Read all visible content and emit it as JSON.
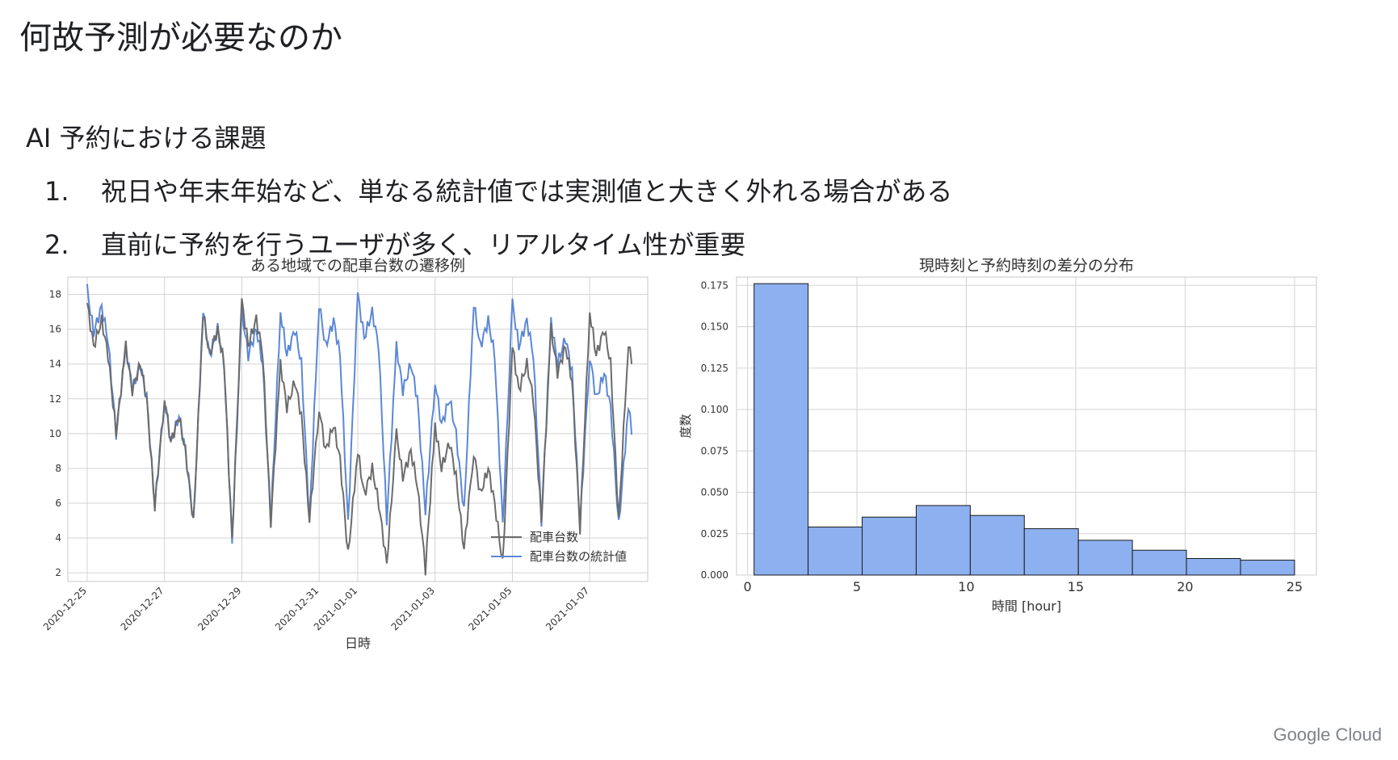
{
  "slide": {
    "title": "何故予測が必要なのか",
    "subtitle": "AI 予約における課題",
    "items": [
      {
        "num": "1.",
        "text": "祝日や年末年始など、単なる統計値では実測値と大きく外れる場合がある"
      },
      {
        "num": "2.",
        "text": "直前に予約を行うユーザが多く、リアルタイム性が重要"
      }
    ],
    "footer": "Google Cloud"
  },
  "colors": {
    "series_actual": "#6b6b6b",
    "series_stat": "#5b87d6",
    "hist_fill": "#8db0f0",
    "hist_edge": "#1a1a1a",
    "grid": "#d3d3d3"
  },
  "chart_data": [
    {
      "type": "line",
      "title": "ある地域での配車台数の遷移例",
      "xlabel": "日時",
      "ylabel": "",
      "xlim": [
        "2020-12-24T12:00",
        "2021-01-08T12:00"
      ],
      "ylim": [
        1.5,
        19
      ],
      "x_ticks": [
        "2020-12-25",
        "2020-12-27",
        "2020-12-29",
        "2020-12-31",
        "2021-01-01",
        "2021-01-03",
        "2021-01-05",
        "2021-01-07"
      ],
      "y_ticks": [
        2,
        4,
        6,
        8,
        10,
        12,
        14,
        16,
        18
      ],
      "grid": true,
      "legend_position": "bottom-right",
      "series": [
        {
          "name": "配車台数",
          "daily_peaks": [
            {
              "date": "2020-12-25",
              "peak": 17.5,
              "trough": 10.0
            },
            {
              "date": "2020-12-26",
              "peak": 15.0,
              "trough": 5.8
            },
            {
              "date": "2020-12-27",
              "peak": 12.0,
              "trough": 4.9
            },
            {
              "date": "2020-12-28",
              "peak": 17.0,
              "trough": 3.8
            },
            {
              "date": "2020-12-29",
              "peak": 17.6,
              "trough": 4.9
            },
            {
              "date": "2020-12-30",
              "peak": 14.0,
              "trough": 5.0
            },
            {
              "date": "2020-12-31",
              "peak": 11.5,
              "trough": 3.0
            },
            {
              "date": "2021-01-01",
              "peak": 9.0,
              "trough": 2.5
            },
            {
              "date": "2021-01-02",
              "peak": 10.0,
              "trough": 2.2
            },
            {
              "date": "2021-01-03",
              "peak": 10.5,
              "trough": 3.3
            },
            {
              "date": "2021-01-04",
              "peak": 9.0,
              "trough": 2.5
            },
            {
              "date": "2021-01-05",
              "peak": 15.0,
              "trough": 5.0
            },
            {
              "date": "2021-01-06",
              "peak": 16.0,
              "trough": 4.5
            },
            {
              "date": "2021-01-07",
              "peak": 17.0,
              "trough": 5.0
            },
            {
              "date": "2021-01-08",
              "peak": 15.3,
              "trough": 10.0
            }
          ]
        },
        {
          "name": "配車台数の統計値",
          "daily_peaks": [
            {
              "date": "2020-12-25",
              "peak": 18.3,
              "trough": 10.0
            },
            {
              "date": "2020-12-26",
              "peak": 15.0,
              "trough": 5.8
            },
            {
              "date": "2020-12-27",
              "peak": 12.0,
              "trough": 4.9
            },
            {
              "date": "2020-12-28",
              "peak": 17.0,
              "trough": 3.8
            },
            {
              "date": "2020-12-29",
              "peak": 17.0,
              "trough": 4.9
            },
            {
              "date": "2020-12-30",
              "peak": 17.0,
              "trough": 5.0
            },
            {
              "date": "2020-12-31",
              "peak": 17.5,
              "trough": 4.8
            },
            {
              "date": "2021-01-01",
              "peak": 18.0,
              "trough": 5.0
            },
            {
              "date": "2021-01-02",
              "peak": 15.0,
              "trough": 5.5
            },
            {
              "date": "2021-01-03",
              "peak": 13.0,
              "trough": 5.5
            },
            {
              "date": "2021-01-04",
              "peak": 17.5,
              "trough": 4.8
            },
            {
              "date": "2021-01-05",
              "peak": 17.5,
              "trough": 5.0
            },
            {
              "date": "2021-01-06",
              "peak": 16.5,
              "trough": 4.8
            },
            {
              "date": "2021-01-07",
              "peak": 14.5,
              "trough": 4.7
            },
            {
              "date": "2021-01-08",
              "peak": 11.5,
              "trough": 11.0
            }
          ]
        }
      ]
    },
    {
      "type": "bar",
      "title": "現時刻と予約時刻の差分の分布",
      "xlabel": "時間 [hour]",
      "ylabel": "度数",
      "xlim": [
        -0.5,
        26
      ],
      "ylim": [
        0,
        0.18
      ],
      "x_ticks": [
        0,
        5,
        10,
        15,
        20,
        25
      ],
      "y_ticks": [
        "0.000",
        "0.025",
        "0.050",
        "0.075",
        "0.100",
        "0.125",
        "0.150",
        "0.175"
      ],
      "grid": true,
      "bin_edges": [
        0.3,
        2.77,
        5.24,
        7.71,
        10.18,
        12.65,
        15.12,
        17.59,
        20.06,
        22.53,
        25.0
      ],
      "values": [
        0.176,
        0.029,
        0.035,
        0.042,
        0.036,
        0.028,
        0.021,
        0.015,
        0.01,
        0.009
      ]
    }
  ]
}
